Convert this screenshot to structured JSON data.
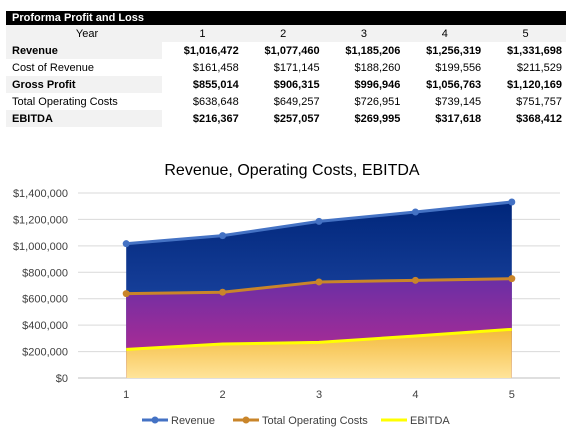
{
  "table": {
    "title": "Proforma Profit and Loss",
    "header_label": "Year",
    "years": [
      "1",
      "2",
      "3",
      "4",
      "5"
    ],
    "rows": [
      {
        "label": "Revenue",
        "values": [
          "$1,016,472",
          "$1,077,460",
          "$1,185,206",
          "$1,256,319",
          "$1,331,698"
        ],
        "bold": true
      },
      {
        "label": "Cost of Revenue",
        "values": [
          "$161,458",
          "$171,145",
          "$188,260",
          "$199,556",
          "$211,529"
        ],
        "bold": false
      },
      {
        "label": "Gross Profit",
        "values": [
          "$855,014",
          "$906,315",
          "$996,946",
          "$1,056,763",
          "$1,120,169"
        ],
        "bold": true
      },
      {
        "label": "Total Operating Costs",
        "values": [
          "$638,648",
          "$649,257",
          "$726,951",
          "$739,145",
          "$751,757"
        ],
        "bold": false
      },
      {
        "label": "EBITDA",
        "values": [
          "$216,367",
          "$257,057",
          "$269,995",
          "$317,618",
          "$368,412"
        ],
        "bold": true
      }
    ]
  },
  "chart_data": {
    "type": "area",
    "title": "Revenue, Operating Costs, EBITDA",
    "categories": [
      "1",
      "2",
      "3",
      "4",
      "5"
    ],
    "ylim": [
      0,
      1400000
    ],
    "yticks": [
      0,
      200000,
      400000,
      600000,
      800000,
      1000000,
      1200000,
      1400000
    ],
    "ytick_labels": [
      "$0",
      "$200,000",
      "$400,000",
      "$600,000",
      "$800,000",
      "$1,000,000",
      "$1,200,000",
      "$1,400,000"
    ],
    "grid": true,
    "legend_position": "bottom",
    "series": [
      {
        "name": "Revenue",
        "values": [
          1016472,
          1077460,
          1185206,
          1256319,
          1331698
        ],
        "line_color": "#4472c4",
        "marker": true
      },
      {
        "name": "Total Operating Costs",
        "values": [
          638648,
          649257,
          726951,
          739145,
          751757
        ],
        "line_color": "#c9852a",
        "marker": true
      },
      {
        "name": "EBITDA",
        "values": [
          216367,
          257057,
          269995,
          317618,
          368412
        ],
        "line_color": "#ffff00",
        "marker": false
      }
    ]
  }
}
